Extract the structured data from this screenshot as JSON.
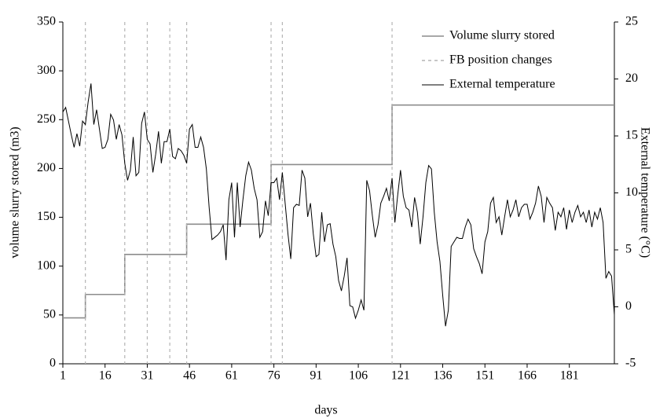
{
  "chart_data": {
    "type": "line",
    "xlabel": "days",
    "ylabel": "volume slurry stored (m3)",
    "y2label": "External temperature (°C)",
    "xlim": [
      1,
      197
    ],
    "xticks": [
      1,
      16,
      31,
      46,
      61,
      76,
      91,
      106,
      121,
      136,
      151,
      166,
      181
    ],
    "ylim": [
      0,
      350
    ],
    "yticks": [
      0,
      50,
      100,
      150,
      200,
      250,
      300,
      350
    ],
    "y2lim": [
      -5,
      25
    ],
    "y2ticks": [
      -5,
      0,
      5,
      10,
      15,
      20,
      25
    ],
    "grid": false,
    "legend": "top-right",
    "series": [
      {
        "name": "Volume slurry stored",
        "color": "#8c8c8c",
        "style": "solid",
        "x": [
          1,
          9,
          9,
          23,
          23,
          45,
          45,
          75,
          75,
          118,
          118,
          197
        ],
        "values": [
          47,
          47,
          71,
          71,
          112,
          112,
          143,
          143,
          204,
          204,
          265,
          265
        ]
      },
      {
        "name": "FB position changes",
        "color": "#b4b4b4",
        "style": "dashed",
        "kind": "vlines",
        "x": [
          9,
          23,
          31,
          39,
          45,
          75,
          79,
          118
        ]
      },
      {
        "name": "External temperature",
        "color": "#000000",
        "style": "solid",
        "axis": "y2",
        "x": [
          1,
          2,
          3,
          4,
          5,
          6,
          7,
          8,
          9,
          10,
          11,
          12,
          13,
          14,
          15,
          16,
          17,
          18,
          19,
          20,
          21,
          22,
          23,
          24,
          25,
          26,
          27,
          28,
          29,
          30,
          31,
          32,
          33,
          34,
          35,
          36,
          37,
          38,
          39,
          40,
          41,
          42,
          43,
          44,
          45,
          46,
          47,
          48,
          49,
          50,
          51,
          52,
          53,
          54,
          55,
          56,
          57,
          58,
          59,
          60,
          61,
          62,
          63,
          64,
          65,
          66,
          67,
          68,
          69,
          70,
          71,
          72,
          73,
          74,
          75,
          76,
          77,
          78,
          79,
          80,
          81,
          82,
          83,
          84,
          85,
          86,
          87,
          88,
          89,
          90,
          91,
          92,
          93,
          94,
          95,
          96,
          97,
          98,
          99,
          100,
          101,
          102,
          103,
          104,
          105,
          106,
          107,
          108,
          109,
          110,
          111,
          112,
          113,
          114,
          115,
          116,
          117,
          118,
          119,
          120,
          121,
          122,
          123,
          124,
          125,
          126,
          127,
          128,
          129,
          130,
          131,
          132,
          133,
          134,
          135,
          136,
          137,
          138,
          139,
          140,
          141,
          142,
          143,
          144,
          145,
          146,
          147,
          148,
          149,
          150,
          151,
          152,
          153,
          154,
          155,
          156,
          157,
          158,
          159,
          160,
          161,
          162,
          163,
          164,
          165,
          166,
          167,
          168,
          169,
          170,
          171,
          172,
          173,
          174,
          175,
          176,
          177,
          178,
          179,
          180,
          181,
          182,
          183,
          184,
          185,
          186,
          187,
          188,
          189,
          190,
          191,
          192,
          193,
          194,
          195,
          196,
          197
        ],
        "values": [
          17.1,
          17.5,
          16.3,
          15.1,
          14.0,
          15.2,
          14.1,
          16.3,
          16.0,
          18.0,
          19.6,
          16.0,
          17.3,
          15.6,
          13.9,
          14.0,
          14.7,
          16.9,
          16.4,
          14.7,
          16.0,
          15.1,
          12.6,
          11.1,
          12.0,
          14.9,
          11.5,
          11.8,
          16.1,
          17.1,
          14.7,
          14.3,
          11.8,
          13.4,
          15.4,
          12.6,
          14.5,
          14.5,
          15.6,
          13.2,
          13.0,
          13.9,
          13.7,
          13.3,
          12.6,
          15.6,
          16.0,
          14.0,
          14.0,
          14.9,
          14.0,
          12.1,
          8.7,
          5.9,
          6.1,
          6.3,
          6.6,
          7.2,
          4.1,
          9.4,
          10.9,
          6.1,
          10.9,
          7.0,
          9.4,
          11.5,
          12.7,
          12.0,
          10.4,
          9.4,
          6.1,
          6.6,
          9.3,
          8.0,
          10.9,
          10.9,
          11.3,
          9.4,
          11.8,
          9.1,
          6.4,
          4.2,
          8.7,
          9.0,
          8.9,
          12.0,
          11.3,
          7.9,
          9.1,
          6.4,
          4.4,
          4.6,
          8.3,
          5.7,
          7.2,
          7.3,
          5.5,
          4.4,
          2.3,
          1.4,
          2.7,
          4.3,
          0.1,
          0.0,
          -1.0,
          -0.3,
          0.6,
          -0.3,
          11.1,
          10.2,
          8.0,
          6.1,
          7.2,
          9.1,
          9.7,
          10.4,
          9.3,
          11.3,
          7.4,
          9.8,
          12.0,
          9.7,
          8.7,
          8.5,
          7.0,
          9.6,
          8.3,
          5.5,
          7.9,
          10.9,
          12.4,
          12.1,
          8.3,
          5.7,
          4.0,
          1.0,
          -1.7,
          -0.3,
          5.3,
          5.7,
          6.1,
          6.0,
          6.0,
          7.0,
          7.7,
          7.2,
          5.1,
          4.4,
          3.8,
          2.9,
          5.7,
          6.6,
          9.1,
          9.6,
          7.4,
          7.9,
          6.3,
          7.9,
          9.4,
          7.9,
          8.5,
          9.4,
          7.9,
          8.7,
          9.0,
          9.0,
          7.7,
          8.3,
          9.1,
          10.6,
          9.7,
          7.4,
          9.6,
          9.1,
          8.7,
          6.7,
          8.3,
          7.9,
          8.7,
          6.8,
          8.5,
          7.4,
          8.3,
          8.9,
          7.9,
          8.3,
          7.4,
          8.5,
          7.0,
          8.3,
          7.7,
          8.7,
          7.4,
          2.5,
          3.1,
          2.7,
          -0.7
        ]
      }
    ]
  }
}
